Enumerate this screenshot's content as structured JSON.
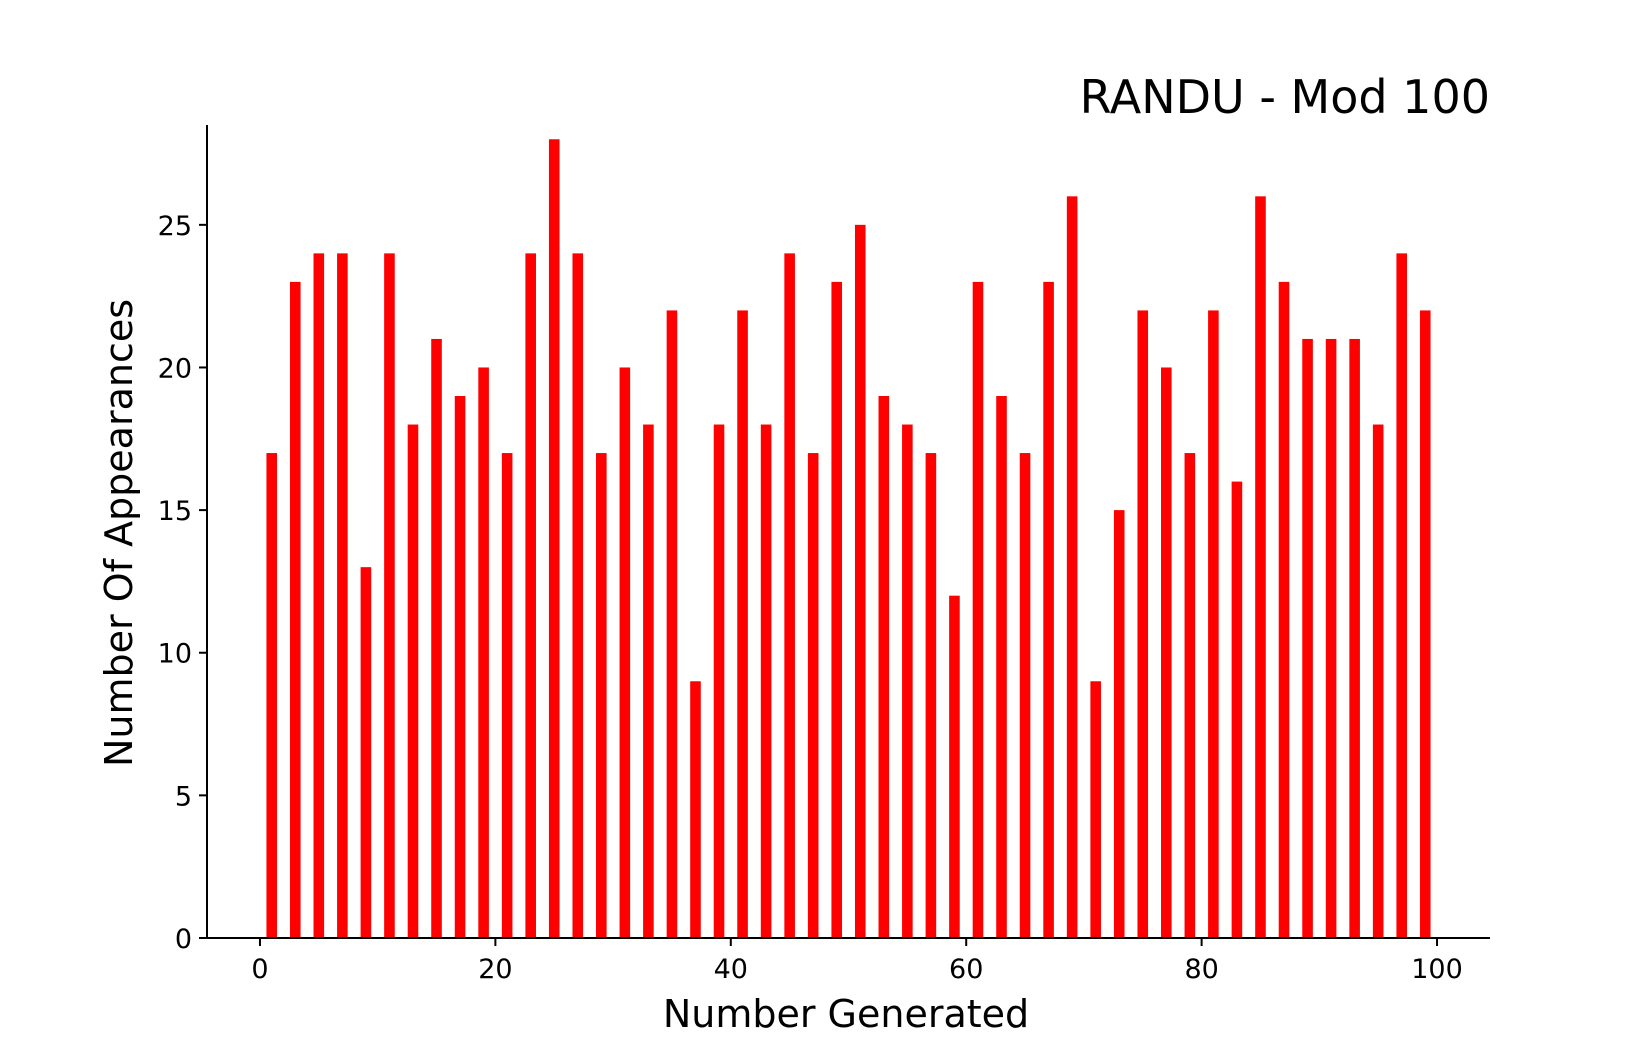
{
  "chart_data": {
    "type": "bar",
    "title": "RANDU - Mod 100",
    "xlabel": "Number Generated",
    "ylabel": "Number Of Appearances",
    "xlim": [
      -4.5,
      104.5
    ],
    "ylim": [
      0,
      28.5
    ],
    "x_ticks": [
      0,
      20,
      40,
      60,
      80,
      100
    ],
    "y_ticks": [
      0,
      5,
      10,
      15,
      20,
      25
    ],
    "grid": false,
    "bar_color": "#ff0000",
    "x": [
      1,
      3,
      5,
      7,
      9,
      11,
      13,
      15,
      17,
      19,
      21,
      23,
      25,
      27,
      29,
      31,
      33,
      35,
      37,
      39,
      41,
      43,
      45,
      47,
      49,
      51,
      53,
      55,
      57,
      59,
      61,
      63,
      65,
      67,
      69,
      71,
      73,
      75,
      77,
      79,
      81,
      83,
      85,
      87,
      89,
      91,
      93,
      95,
      97,
      99
    ],
    "values": [
      17,
      23,
      24,
      24,
      13,
      24,
      18,
      21,
      19,
      20,
      17,
      24,
      28,
      24,
      17,
      20,
      18,
      22,
      9,
      18,
      22,
      18,
      24,
      17,
      23,
      25,
      19,
      18,
      17,
      12,
      23,
      19,
      17,
      23,
      26,
      9,
      15,
      22,
      20,
      17,
      22,
      16,
      26,
      23,
      21,
      21,
      21,
      18,
      24,
      22
    ]
  }
}
